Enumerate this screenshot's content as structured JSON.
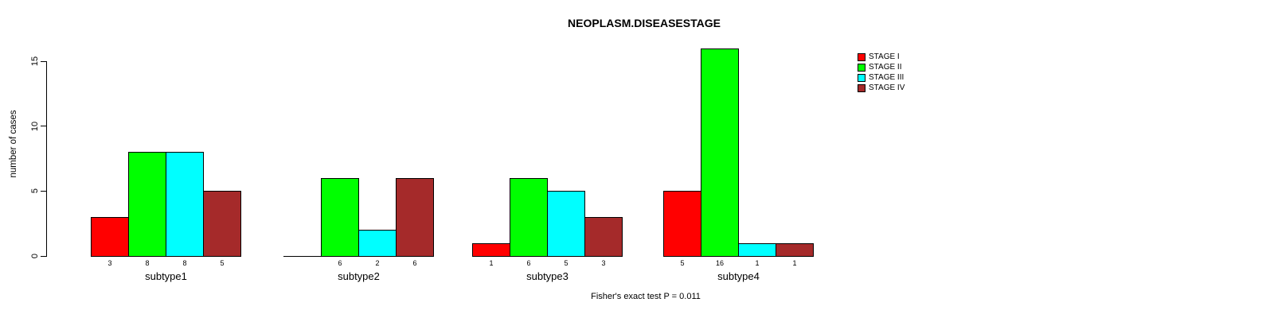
{
  "chart": {
    "title": "NEOPLASM.DISEASESTAGE",
    "ylabel": "number of cases",
    "caption": "Fisher's exact test P = 0.011"
  },
  "chart_data": {
    "type": "bar",
    "title": "NEOPLASM.DISEASESTAGE",
    "xlabel": "",
    "ylabel": "number of cases",
    "caption": "Fisher's exact test P = 0.011",
    "categories": [
      "subtype1",
      "subtype2",
      "subtype3",
      "subtype4"
    ],
    "series": [
      {
        "name": "STAGE I",
        "color": "#ff0000",
        "values": [
          3,
          0,
          1,
          5
        ]
      },
      {
        "name": "STAGE II",
        "color": "#00ff00",
        "values": [
          8,
          6,
          6,
          16
        ]
      },
      {
        "name": "STAGE III",
        "color": "#00ffff",
        "values": [
          8,
          2,
          5,
          1
        ]
      },
      {
        "name": "STAGE IV",
        "color": "#a52a2a",
        "values": [
          5,
          6,
          3,
          1
        ]
      }
    ],
    "bar_value_labels_rule": "value shown under each bar; hidden when value is 0",
    "yticks": [
      0,
      5,
      10,
      15
    ],
    "ylim": [
      0,
      15
    ],
    "grid": false,
    "legend_position": "top-right",
    "bar_border_color": "#000000",
    "text_color": "#000000",
    "background_color": "#ffffff"
  }
}
